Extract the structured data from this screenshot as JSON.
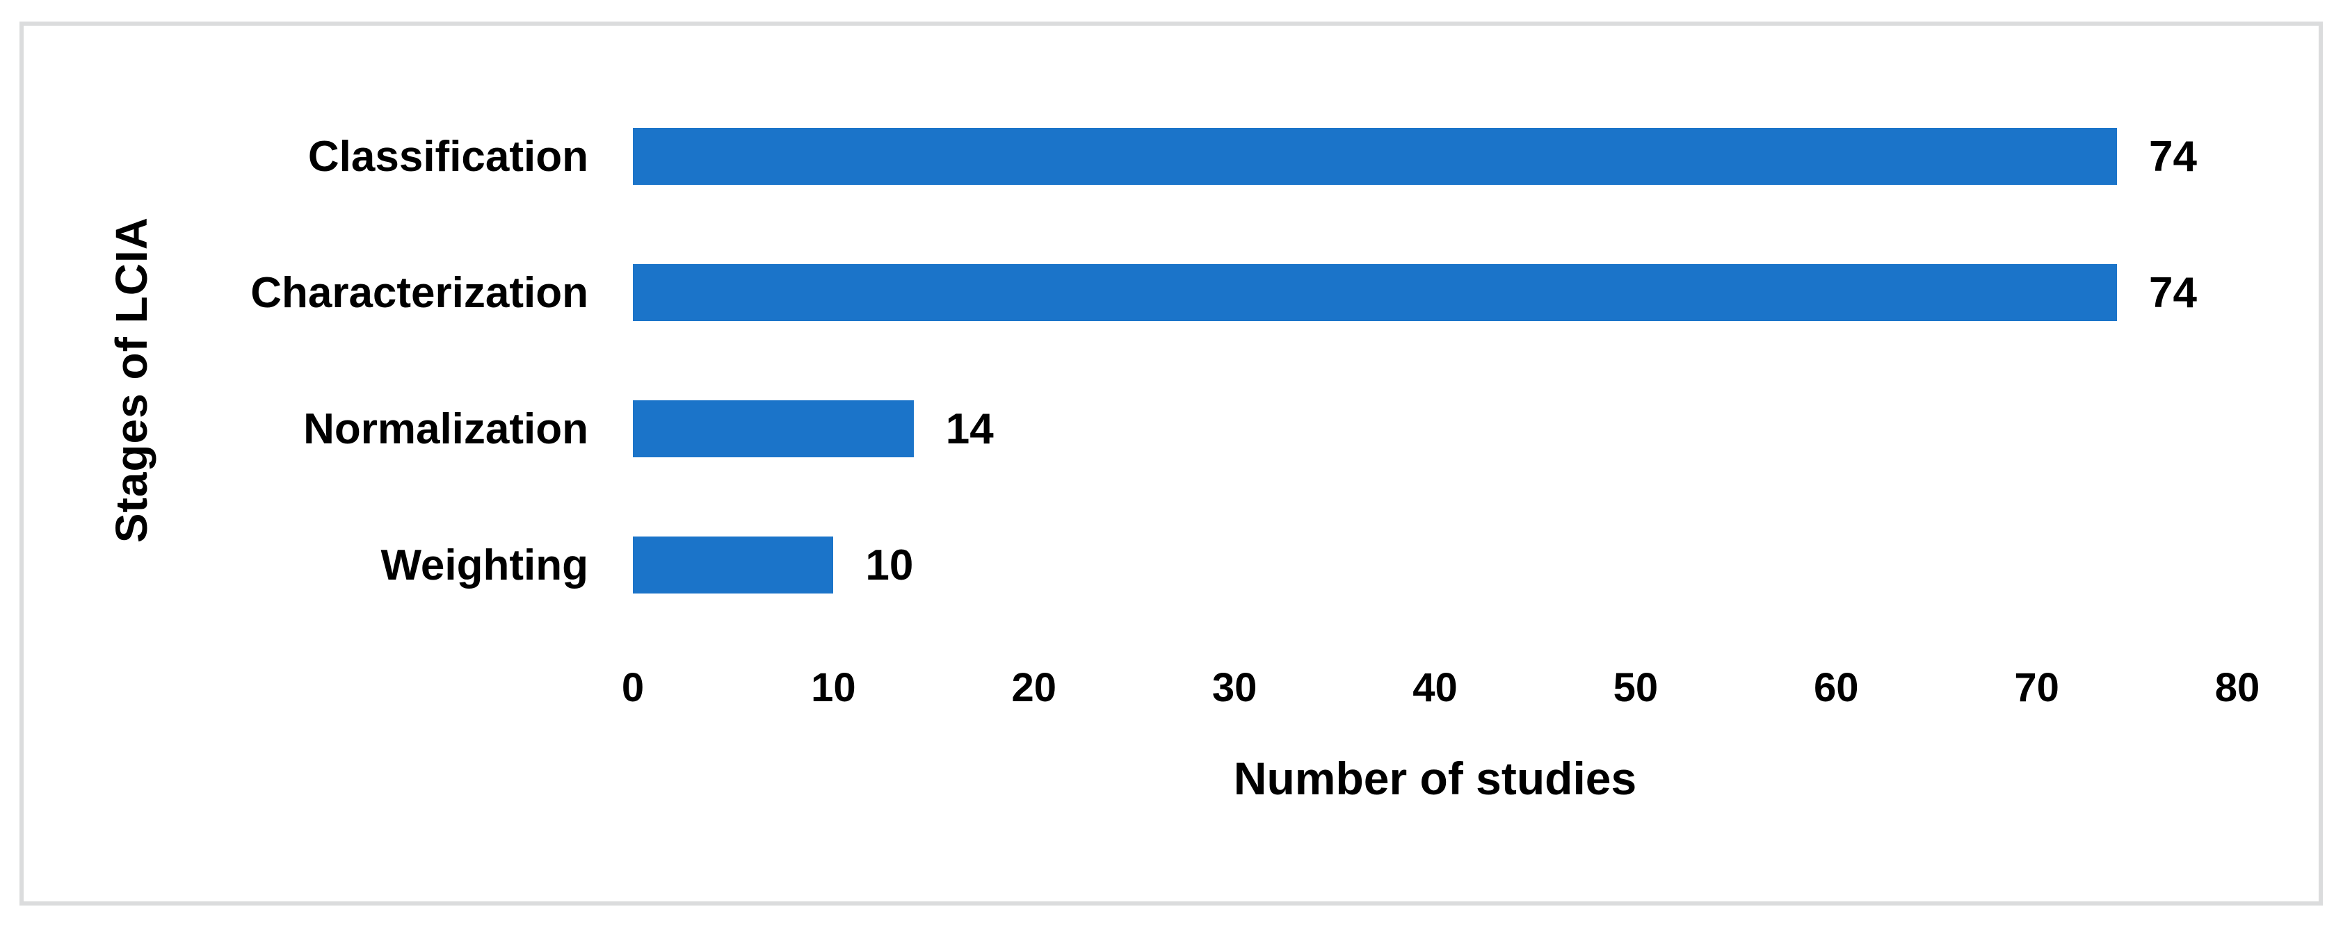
{
  "chart_data": {
    "type": "bar",
    "orientation": "horizontal",
    "title": "",
    "categories": [
      "Classification",
      "Characterization",
      "Normalization",
      "Weighting"
    ],
    "values": [
      74,
      74,
      14,
      10
    ],
    "data_labels": [
      "74",
      "74",
      "14",
      "10"
    ],
    "xlabel": "Number of studies",
    "ylabel": "Stages of LCIA",
    "xlim": [
      0,
      80
    ],
    "xticks": [
      "0",
      "10",
      "20",
      "30",
      "40",
      "50",
      "60",
      "70",
      "80"
    ],
    "grid": false,
    "legend": false,
    "bar_color": "#1b74c9",
    "frame_border_color": "#dbdcdd",
    "background_color": "#ffffff",
    "text_color": "#000000"
  }
}
